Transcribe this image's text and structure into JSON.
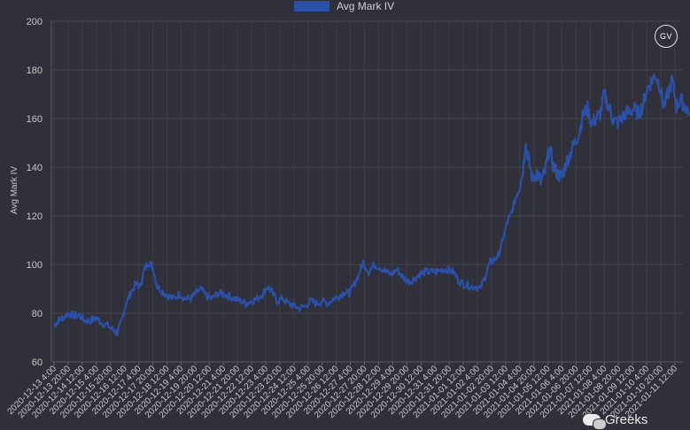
{
  "chart_data": {
    "type": "line",
    "legend": {
      "label": "Avg Mark IV",
      "color": "#2b50a8",
      "position": "top-center"
    },
    "ylabel": "Avg Mark IV",
    "xlabel": "",
    "ylim": [
      60,
      200
    ],
    "yticks": [
      60,
      80,
      100,
      120,
      140,
      160,
      180,
      200
    ],
    "grid": true,
    "xticks": [
      "2020-12-13 4:00",
      "2020-12-13 20:00",
      "2020-12-14 12:00",
      "2020-12-15 4:00",
      "2020-12-15 20:00",
      "2020-12-16 12:00",
      "2020-12-17 4:00",
      "2020-12-17 20:00",
      "2020-12-18 12:00",
      "2020-12-19 4:00",
      "2020-12-19 20:00",
      "2020-12-20 12:00",
      "2020-12-21 4:00",
      "2020-12-21 20:00",
      "2020-12-22 12:00",
      "2020-12-23 4:00",
      "2020-12-23 20:00",
      "2020-12-24 12:00",
      "2020-12-25 4:00",
      "2020-12-25 20:00",
      "2020-12-26 12:00",
      "2020-12-27 4:00",
      "2020-12-27 20:00",
      "2020-12-28 12:00",
      "2020-12-29 4:00",
      "2020-12-29 20:00",
      "2020-12-30 12:00",
      "2020-12-31 4:00",
      "2020-12-31 20:00",
      "2021-01-01 12:00",
      "2021-01-02 4:00",
      "2021-01-02 20:00",
      "2021-01-03 12:00",
      "2021-01-04 4:00",
      "2021-01-04 20:00",
      "2021-01-05 12:00",
      "2021-01-06 4:00",
      "2021-01-06 20:00",
      "2021-01-07 12:00",
      "2021-01-08 4:00",
      "2021-01-08 20:00",
      "2021-01-09 12:00",
      "2021-01-10 4:00",
      "2021-01-10 20:00",
      "2021-01-11 12:00"
    ],
    "series": [
      {
        "name": "Avg Mark IV",
        "color": "#2b50a8",
        "points": [
          [
            0,
            75
          ],
          [
            0.3,
            77
          ],
          [
            0.6,
            78
          ],
          [
            1,
            80
          ],
          [
            1.4,
            79
          ],
          [
            1.8,
            79
          ],
          [
            2.2,
            77
          ],
          [
            2.6,
            77
          ],
          [
            3,
            78
          ],
          [
            3.4,
            76
          ],
          [
            3.8,
            75
          ],
          [
            4.2,
            73
          ],
          [
            4.5,
            72
          ],
          [
            4.8,
            77
          ],
          [
            5.1,
            84
          ],
          [
            5.4,
            88
          ],
          [
            5.8,
            92
          ],
          [
            6.1,
            91
          ],
          [
            6.4,
            98
          ],
          [
            6.7,
            101
          ],
          [
            7,
            99
          ],
          [
            7.3,
            91
          ],
          [
            7.7,
            89
          ],
          [
            8.1,
            87
          ],
          [
            8.5,
            86
          ],
          [
            8.9,
            88
          ],
          [
            9.3,
            86
          ],
          [
            9.7,
            86
          ],
          [
            10,
            88
          ],
          [
            10.4,
            90
          ],
          [
            10.8,
            87
          ],
          [
            11.2,
            86
          ],
          [
            11.6,
            88
          ],
          [
            12,
            88
          ],
          [
            12.4,
            87
          ],
          [
            12.8,
            86
          ],
          [
            13.2,
            85
          ],
          [
            13.6,
            84
          ],
          [
            14,
            85
          ],
          [
            14.4,
            86
          ],
          [
            14.8,
            88
          ],
          [
            15.1,
            91
          ],
          [
            15.4,
            89
          ],
          [
            15.8,
            85
          ],
          [
            16.2,
            86
          ],
          [
            16.6,
            84
          ],
          [
            17,
            83
          ],
          [
            17.4,
            82
          ],
          [
            17.8,
            83
          ],
          [
            18.2,
            85
          ],
          [
            18.6,
            84
          ],
          [
            19,
            85
          ],
          [
            19.4,
            84
          ],
          [
            19.8,
            86
          ],
          [
            20.2,
            87
          ],
          [
            20.6,
            89
          ],
          [
            20.9,
            88
          ],
          [
            21.2,
            91
          ],
          [
            21.6,
            96
          ],
          [
            21.9,
            101
          ],
          [
            22.3,
            97
          ],
          [
            22.7,
            100
          ],
          [
            23.1,
            99
          ],
          [
            23.5,
            97
          ],
          [
            23.9,
            96
          ],
          [
            24.3,
            98
          ],
          [
            24.7,
            95
          ],
          [
            25.1,
            93
          ],
          [
            25.5,
            94
          ],
          [
            25.9,
            96
          ],
          [
            26.3,
            97
          ],
          [
            26.7,
            97
          ],
          [
            27.1,
            97
          ],
          [
            27.5,
            98
          ],
          [
            27.9,
            98
          ],
          [
            28.3,
            97
          ],
          [
            28.7,
            93
          ],
          [
            29.1,
            92
          ],
          [
            29.5,
            91
          ],
          [
            29.9,
            91
          ],
          [
            30.2,
            90
          ],
          [
            30.6,
            96
          ],
          [
            30.9,
            101
          ],
          [
            31.2,
            102
          ],
          [
            31.5,
            104
          ],
          [
            31.8,
            110
          ],
          [
            32.1,
            117
          ],
          [
            32.4,
            121
          ],
          [
            32.7,
            127
          ],
          [
            32.9,
            131
          ],
          [
            33.2,
            137
          ],
          [
            33.4,
            150
          ],
          [
            33.6,
            144
          ],
          [
            33.9,
            135
          ],
          [
            34.2,
            138
          ],
          [
            34.5,
            134
          ],
          [
            34.8,
            138
          ],
          [
            35.1,
            148
          ],
          [
            35.4,
            140
          ],
          [
            35.7,
            137
          ],
          [
            36,
            136
          ],
          [
            36.3,
            142
          ],
          [
            36.6,
            146
          ],
          [
            36.9,
            150
          ],
          [
            37.2,
            154
          ],
          [
            37.5,
            162
          ],
          [
            37.8,
            164
          ],
          [
            38.1,
            158
          ],
          [
            38.4,
            160
          ],
          [
            38.7,
            162
          ],
          [
            39,
            170
          ],
          [
            39.3,
            165
          ],
          [
            39.6,
            160
          ],
          [
            39.9,
            158
          ],
          [
            40.2,
            160
          ],
          [
            40.5,
            162
          ],
          [
            40.8,
            163
          ],
          [
            41.1,
            164
          ],
          [
            41.4,
            162
          ],
          [
            41.7,
            165
          ],
          [
            42,
            172
          ],
          [
            42.3,
            175
          ],
          [
            42.6,
            178
          ],
          [
            42.9,
            174
          ],
          [
            43.2,
            165
          ],
          [
            43.5,
            170
          ],
          [
            43.8,
            176
          ],
          [
            44.1,
            165
          ],
          [
            44.4,
            168
          ],
          [
            44.7,
            165
          ],
          [
            45,
            163
          ]
        ]
      }
    ]
  },
  "badge": {
    "text": "GV"
  },
  "watermark": {
    "text": "Greeks"
  }
}
